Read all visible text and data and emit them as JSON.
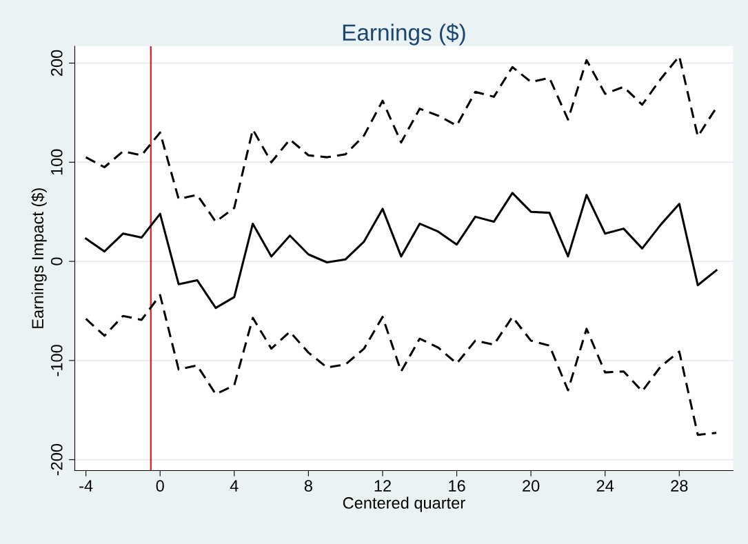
{
  "chart_data": {
    "type": "line",
    "title": "Earnings ($)",
    "xlabel": "Centered quarter",
    "ylabel": "Earnings Impact ($)",
    "x": [
      -4,
      -3,
      -2,
      -1,
      0,
      1,
      2,
      3,
      4,
      5,
      6,
      7,
      8,
      9,
      10,
      11,
      12,
      13,
      14,
      15,
      16,
      17,
      18,
      19,
      20,
      21,
      22,
      23,
      24,
      25,
      26,
      27,
      28,
      29,
      30
    ],
    "series": [
      {
        "color": "#000000",
        "line_style": "dashed",
        "values": [
          105,
          95,
          111,
          107,
          130,
          63,
          67,
          40,
          54,
          133,
          100,
          123,
          107,
          105,
          108,
          127,
          162,
          120,
          154,
          147,
          137,
          171,
          166,
          196,
          181,
          185,
          143,
          203,
          169,
          176,
          158,
          184,
          207,
          126,
          155
        ]
      },
      {
        "color": "#000000",
        "line_style": "solid",
        "values": [
          23,
          10,
          28,
          24,
          48,
          -23,
          -19,
          -47,
          -36,
          38,
          5,
          26,
          7,
          -1,
          2,
          20,
          53,
          5,
          38,
          30,
          17,
          45,
          40,
          69,
          50,
          49,
          5,
          67,
          28,
          33,
          13,
          37,
          58,
          -24,
          -9
        ]
      },
      {
        "color": "#000000",
        "line_style": "dashed",
        "values": [
          -58,
          -75,
          -55,
          -59,
          -34,
          -109,
          -105,
          -134,
          -125,
          -57,
          -88,
          -71,
          -92,
          -107,
          -104,
          -88,
          -56,
          -111,
          -78,
          -87,
          -103,
          -80,
          -84,
          -56,
          -80,
          -85,
          -130,
          -68,
          -112,
          -111,
          -131,
          -106,
          -91,
          -175,
          -173
        ]
      }
    ],
    "ref_lines": [
      {
        "axis": "x",
        "value": -0.5,
        "color": "#e41a1c"
      }
    ],
    "xlim": [
      -4.6,
      30.9
    ],
    "xticks": [
      -4,
      0,
      4,
      8,
      12,
      16,
      20,
      24,
      28
    ],
    "ylim": [
      -211,
      217
    ],
    "yticks": [
      -200,
      -100,
      0,
      100,
      200
    ],
    "grid": "y",
    "marker": "none"
  }
}
